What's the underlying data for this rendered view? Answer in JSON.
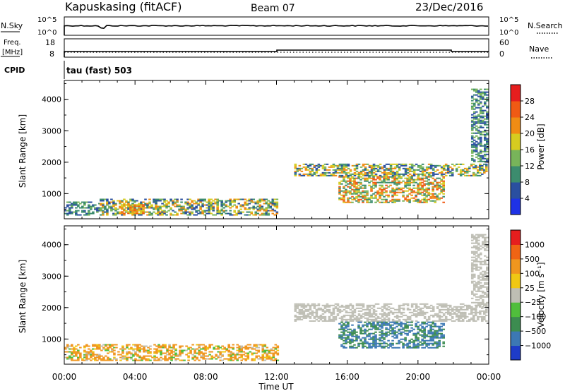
{
  "header": {
    "station": "Kapuskasing (fitACF)",
    "beam": "Beam 07",
    "date": "23/Dec/2016"
  },
  "noise_panel": {
    "left_label": "N.Sky",
    "left_ticks": [
      "10^5",
      "10^0"
    ],
    "right_ticks": [
      "10^5",
      "10^0"
    ],
    "right_label": "N.Search"
  },
  "freq_panel": {
    "left_label_1": "Freq.",
    "left_label_2": "[MHz]",
    "left_ticks": [
      "18",
      "8"
    ],
    "right_ticks": [
      "60",
      "0"
    ],
    "right_label": "Nave"
  },
  "cpid": {
    "label": "CPID",
    "text": "tau (fast) 503"
  },
  "chart_data": [
    {
      "type": "heatmap",
      "panel": "power",
      "ylabel": "Slant Range [km]",
      "ylim": [
        200,
        4600
      ],
      "yticks": [
        1000,
        2000,
        3000,
        4000
      ],
      "x_tick_labels": [
        "00:00",
        "04:00",
        "08:00",
        "12:00",
        "16:00",
        "20:00",
        "00:00"
      ],
      "colorbar": {
        "label": "Power [dB]",
        "ticks": [
          "4",
          "8",
          "12",
          "16",
          "20",
          "24",
          "28"
        ],
        "colors": [
          "#1e32e6",
          "#2a4fa0",
          "#3c8c6e",
          "#78b45a",
          "#d7cc20",
          "#f08c14",
          "#f05a14",
          "#e61e1e"
        ]
      },
      "regions": [
        {
          "t_start_h": 0.0,
          "t_end_h": 2.0,
          "range_km": [
            300,
            750
          ],
          "power_db": [
            4,
            14
          ]
        },
        {
          "t_start_h": 2.0,
          "t_end_h": 12.0,
          "range_km": [
            300,
            800
          ],
          "power_db": [
            4,
            24
          ]
        },
        {
          "t_start_h": 3.2,
          "t_end_h": 4.5,
          "range_km": [
            350,
            650
          ],
          "power_db": [
            18,
            28
          ]
        },
        {
          "t_start_h": 13.0,
          "t_end_h": 23.9,
          "range_km": [
            1550,
            1950
          ],
          "power_db": [
            4,
            24
          ]
        },
        {
          "t_start_h": 15.5,
          "t_end_h": 21.5,
          "range_km": [
            700,
            1550
          ],
          "power_db": [
            8,
            28
          ]
        },
        {
          "t_start_h": 23.0,
          "t_end_h": 23.9,
          "range_km": [
            2000,
            4300
          ],
          "power_db": [
            4,
            16
          ]
        }
      ]
    },
    {
      "type": "heatmap",
      "panel": "velocity",
      "ylabel": "Slant Range [km]",
      "ylim": [
        200,
        4600
      ],
      "yticks": [
        1000,
        2000,
        3000,
        4000
      ],
      "x_tick_labels": [
        "00:00",
        "04:00",
        "08:00",
        "12:00",
        "16:00",
        "20:00",
        "00:00"
      ],
      "xlabel": "Time UT",
      "colorbar": {
        "label": "Velocity [m s⁻¹]",
        "ticks": [
          "1000",
          "500",
          "100",
          "25",
          "−25",
          "−100",
          "−500",
          "−1000"
        ],
        "colors": [
          "#1e3cc8",
          "#3c78b4",
          "#3c8c50",
          "#50be3c",
          "#bebeb4",
          "#f0c814",
          "#f0961e",
          "#f06414",
          "#e61e1e"
        ]
      },
      "regions": [
        {
          "t_start_h": 0.0,
          "t_end_h": 12.0,
          "range_km": [
            300,
            800
          ],
          "velocity_ms": [
            -100,
            500
          ]
        },
        {
          "t_start_h": 13.0,
          "t_end_h": 23.9,
          "range_km": [
            1550,
            2100
          ],
          "velocity_ms": [
            -25,
            25
          ]
        },
        {
          "t_start_h": 15.5,
          "t_end_h": 21.5,
          "range_km": [
            700,
            1550
          ],
          "velocity_ms": [
            -1000,
            -100
          ]
        },
        {
          "t_start_h": 23.0,
          "t_end_h": 23.9,
          "range_km": [
            2000,
            4300
          ],
          "velocity_ms": [
            -25,
            25
          ]
        }
      ]
    }
  ]
}
